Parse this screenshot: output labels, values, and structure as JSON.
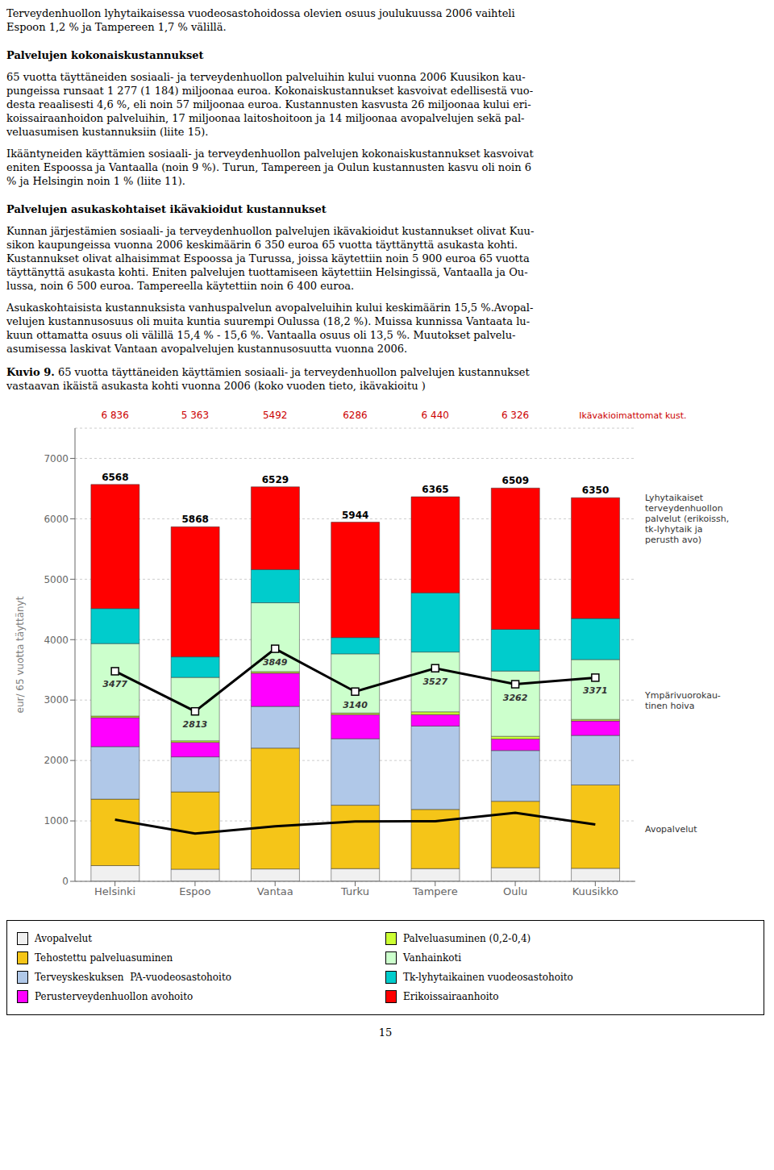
{
  "chart_data": {
    "type": "bar",
    "stacked": true,
    "title_prefix": "Kuvio 9.",
    "title": "65 vuotta täyttäneiden käyttämien sosiaali- ja terveydenhuollon palvelujen kustannukset\nvastaavan ikäistä asukasta kohti vuonna 2006 (koko vuoden tieto, ikävakioitu )",
    "text_blocks": [
      {
        "text": "Terveydenhuollon lyhytaikaisessa vuodeosastohoidossa olevien osuus joulukuussa 2006 vaihteli\nEspoon 1,2 % ja Tampereen 1,7 % välillä.",
        "bold": false
      },
      {
        "text": "Palvelujen kokonaiskustannukset",
        "bold": true
      },
      {
        "text": "65 vuotta täyttäneiden sosiaali- ja terveydenhuollon palveluihin kului vuonna 2006 Kuusikon kau-\npungeissa runsaat 1 277 (1 184) miljoonaa euroa.  Kokonaiskustannukset kasvoivat edellisestä vuo-\ndesta reaalisesti 4,6 %, eli noin 57 miljoonaa euroa. Kustannusten kasvusta 26 miljoonaa kului eri-\nkoissairaanhoidon palveluihin, 17 miljoonaa laitoshoitoon ja 14 miljoonaa avopalvelujen sekä pal-\nveluasumisen kustannuksiin (liite 15).",
        "bold": false
      },
      {
        "text": "Ikääntyneiden käyttämien sosiaali- ja terveydenhuollon palvelujen kokonaiskustannukset kasvoivat\neniten Espoossa ja Vantaalla (noin 9 %). Turun, Tampereen ja Oulun kustannusten kasvu oli noin 6\n% ja Helsingin noin 1 % (liite 11).",
        "bold": false
      },
      {
        "text": "Palvelujen asukaskohtaiset ikävakioidut kustannukset",
        "bold": true
      },
      {
        "text": "Kunnan järjestämien sosiaali- ja terveydenhuollon palvelujen ikävakioidut kustannukset olivat Kuu-\nsikon kaupungeissa vuonna 2006 keskimäärin 6 350 euroa 65 vuotta täyttänyttä asukasta kohti.\nKustannukset olivat alhaisimmat Espoossa ja Turussa, joissa käytettiin noin 5 900 euroa 65 vuotta\ntäyttänyttä asukasta kohti.  Eniten palvelujen tuottamiseen käytettiin Helsingissä, Vantaalla ja Ou-\nlussa, noin 6 500 euroa. Tampereella käytettiin noin 6 400 euroa.",
        "bold": false
      },
      {
        "text": "Asukaskohtaisista kustannuksista vanhuspalvelun avopalveluihin kului keskimäärin 15,5 %.Avopal-\nvelujen kustannusosuus oli muita kuntia suurempi Oulussa (18,2 %). Muissa kunnissa Vantaata lu-\nkuun ottamatta osuus oli välillä 15,4 % - 15,6 %. Vantaalla osuus oli 13,5 %. Muutokset palvelu-\nasumisessa laskivat Vantaan avopalvelujen kustannusosuutta vuonna 2006.",
        "bold": false
      }
    ],
    "categories": [
      "Helsinki",
      "Espoo",
      "Vantaa",
      "Turku",
      "Tampere",
      "Oulu",
      "Kuusikko"
    ],
    "series": [
      {
        "name": "Avopalvelut",
        "type": "bar",
        "color": "#f0f0f0",
        "values": [
          260,
          200,
          205,
          210,
          210,
          225,
          215
        ]
      },
      {
        "name": "Tehostettu palveluasuminen",
        "type": "bar",
        "color": "#f5c518",
        "values": [
          1100,
          1280,
          2000,
          1050,
          980,
          1100,
          1380
        ]
      },
      {
        "name": "Terveyskeskuksen  PA-vuodeosastohoito",
        "type": "bar",
        "color": "#b0c8e8",
        "values": [
          870,
          580,
          690,
          1100,
          1380,
          840,
          820
        ]
      },
      {
        "name": "Perusterveydenhuollon avohoito",
        "type": "bar",
        "color": "#ff00ff",
        "values": [
          480,
          240,
          550,
          400,
          190,
          190,
          240
        ]
      },
      {
        "name": "Palveluasuminen (0,2-0,4)",
        "type": "bar",
        "color": "#ccff33",
        "values": [
          25,
          25,
          25,
          25,
          45,
          45,
          25
        ]
      },
      {
        "name": "Vanhainkoti",
        "type": "bar",
        "color": "#ccffcc",
        "values": [
          1200,
          1050,
          1140,
          980,
          990,
          1080,
          990
        ]
      },
      {
        "name": "Tk-lyhytaikainen vuodeosastohoito",
        "type": "bar",
        "color": "#00cccc",
        "values": [
          580,
          340,
          550,
          270,
          980,
          690,
          680
        ]
      },
      {
        "name": "Erikoissairaanhoito",
        "type": "bar",
        "color": "#ff0000",
        "values": [
          2053,
          2153,
          1369,
          1909,
          1590,
          2339,
          2000
        ]
      },
      {
        "type": "line",
        "color": "#000000",
        "marker": "square",
        "line_style": "solid",
        "data_labels": true,
        "values": [
          3477,
          2813,
          3849,
          3140,
          3527,
          3262,
          3371
        ]
      },
      {
        "type": "line",
        "color": "#000000",
        "line_style": "solid",
        "values": [
          1020,
          790,
          910,
          990,
          995,
          1135,
          940
        ]
      }
    ],
    "totals": [
      6568,
      5868,
      6529,
      5944,
      6365,
      6509,
      6350
    ],
    "top_labels": {
      "labels": [
        "6 836",
        "5 363",
        "5492",
        "6286",
        "6 440",
        "6 326"
      ],
      "extra": "Ikävakioimattomat kust.",
      "color": "#cc0000"
    },
    "annotations": [
      {
        "text": "Lyhytaikaiset\nterveydenhuollon\npalvelut (erikoissh,\ntk-lyhytaik ja\nperusth avo)",
        "y": 6000
      },
      {
        "text": "Ympärivuorokau-\ntinen hoiva",
        "y": 3000
      },
      {
        "text": "Avopalvelut",
        "y": 870
      }
    ],
    "ylabel": "eur/ 65 vuotta täyttänyt",
    "ylim": [
      0,
      7500
    ],
    "yticks": [
      0,
      1000,
      2000,
      3000,
      4000,
      5000,
      6000,
      7000
    ],
    "grid": true,
    "legend": "bottom",
    "page_number": "15"
  }
}
